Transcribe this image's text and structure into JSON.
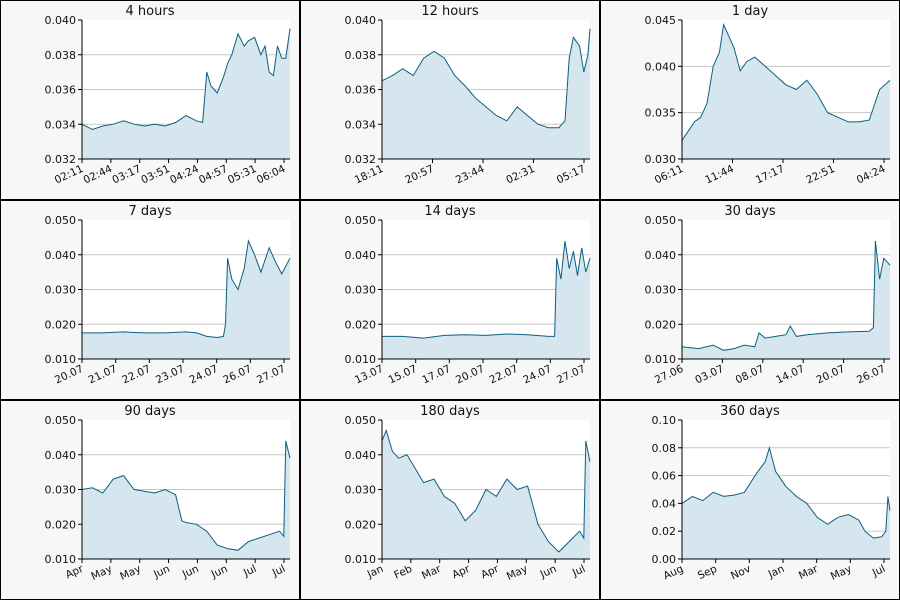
{
  "chart_data": [
    {
      "type": "area",
      "title": "4 hours",
      "ylim": [
        0.032,
        0.04
      ],
      "yticks": [
        "0.032",
        "0.034",
        "0.036",
        "0.038",
        "0.040"
      ],
      "xticks": [
        "02:11",
        "02:44",
        "03:17",
        "03:51",
        "04:24",
        "04:57",
        "05:31",
        "06:04"
      ],
      "series": [
        {
          "x": [
            0,
            0.05,
            0.1,
            0.15,
            0.2,
            0.25,
            0.3,
            0.35,
            0.4,
            0.45,
            0.5,
            0.55,
            0.58,
            0.6,
            0.62,
            0.65,
            0.68,
            0.7,
            0.72,
            0.75,
            0.78,
            0.8,
            0.83,
            0.86,
            0.88,
            0.9,
            0.92,
            0.94,
            0.96,
            0.98,
            1.0
          ],
          "y": [
            0.034,
            0.0337,
            0.0339,
            0.034,
            0.0342,
            0.034,
            0.0339,
            0.034,
            0.0339,
            0.0341,
            0.0345,
            0.0342,
            0.0341,
            0.037,
            0.0362,
            0.0358,
            0.0367,
            0.0375,
            0.038,
            0.0392,
            0.0385,
            0.0388,
            0.039,
            0.038,
            0.0385,
            0.037,
            0.0368,
            0.0385,
            0.0378,
            0.0378,
            0.0395
          ]
        }
      ]
    },
    {
      "type": "area",
      "title": "12 hours",
      "ylim": [
        0.032,
        0.04
      ],
      "yticks": [
        "0.032",
        "0.034",
        "0.036",
        "0.038",
        "0.040"
      ],
      "xticks": [
        "18:11",
        "20:57",
        "23:44",
        "02:31",
        "05:17"
      ],
      "series": [
        {
          "x": [
            0,
            0.05,
            0.1,
            0.15,
            0.2,
            0.25,
            0.3,
            0.35,
            0.4,
            0.45,
            0.5,
            0.55,
            0.6,
            0.65,
            0.7,
            0.75,
            0.8,
            0.85,
            0.88,
            0.9,
            0.92,
            0.95,
            0.97,
            0.99,
            1.0
          ],
          "y": [
            0.0365,
            0.0368,
            0.0372,
            0.0368,
            0.0378,
            0.0382,
            0.0378,
            0.0368,
            0.0362,
            0.0355,
            0.035,
            0.0345,
            0.0342,
            0.035,
            0.0345,
            0.034,
            0.0338,
            0.0338,
            0.0342,
            0.0378,
            0.039,
            0.0385,
            0.037,
            0.038,
            0.0395
          ]
        }
      ]
    },
    {
      "type": "area",
      "title": "1 day",
      "ylim": [
        0.03,
        0.045
      ],
      "yticks": [
        "0.030",
        "0.035",
        "0.040",
        "0.045"
      ],
      "xticks": [
        "06:11",
        "11:44",
        "17:17",
        "22:51",
        "04:24"
      ],
      "series": [
        {
          "x": [
            0,
            0.03,
            0.06,
            0.09,
            0.12,
            0.15,
            0.18,
            0.2,
            0.22,
            0.25,
            0.28,
            0.31,
            0.35,
            0.4,
            0.45,
            0.5,
            0.55,
            0.6,
            0.65,
            0.7,
            0.75,
            0.8,
            0.85,
            0.9,
            0.95,
            1.0
          ],
          "y": [
            0.032,
            0.033,
            0.034,
            0.0345,
            0.036,
            0.04,
            0.0415,
            0.0445,
            0.0435,
            0.042,
            0.0395,
            0.0405,
            0.041,
            0.04,
            0.039,
            0.038,
            0.0375,
            0.0385,
            0.037,
            0.035,
            0.0345,
            0.034,
            0.034,
            0.0342,
            0.0375,
            0.0385
          ]
        }
      ]
    },
    {
      "type": "area",
      "title": "7 days",
      "ylim": [
        0.01,
        0.05
      ],
      "yticks": [
        "0.010",
        "0.020",
        "0.030",
        "0.040",
        "0.050"
      ],
      "xticks": [
        "20.07",
        "21.07",
        "22.07",
        "23.07",
        "24.07",
        "26.07",
        "27.07"
      ],
      "series": [
        {
          "x": [
            0,
            0.1,
            0.2,
            0.3,
            0.4,
            0.5,
            0.55,
            0.6,
            0.65,
            0.68,
            0.69,
            0.7,
            0.72,
            0.75,
            0.78,
            0.8,
            0.83,
            0.86,
            0.9,
            0.93,
            0.96,
            1.0
          ],
          "y": [
            0.0175,
            0.0175,
            0.0178,
            0.0175,
            0.0175,
            0.0178,
            0.0175,
            0.0165,
            0.0162,
            0.0165,
            0.02,
            0.039,
            0.033,
            0.03,
            0.036,
            0.044,
            0.04,
            0.035,
            0.042,
            0.038,
            0.0345,
            0.039
          ]
        }
      ]
    },
    {
      "type": "area",
      "title": "14 days",
      "ylim": [
        0.01,
        0.05
      ],
      "yticks": [
        "0.010",
        "0.020",
        "0.030",
        "0.040",
        "0.050"
      ],
      "xticks": [
        "13.07",
        "15.07",
        "17.07",
        "20.07",
        "22.07",
        "24.07",
        "27.07"
      ],
      "series": [
        {
          "x": [
            0,
            0.1,
            0.2,
            0.3,
            0.4,
            0.5,
            0.6,
            0.7,
            0.8,
            0.83,
            0.84,
            0.86,
            0.88,
            0.9,
            0.92,
            0.94,
            0.96,
            0.98,
            1.0
          ],
          "y": [
            0.0165,
            0.0165,
            0.016,
            0.0168,
            0.017,
            0.0168,
            0.0172,
            0.017,
            0.0165,
            0.0165,
            0.039,
            0.033,
            0.044,
            0.036,
            0.041,
            0.034,
            0.042,
            0.035,
            0.039
          ]
        }
      ]
    },
    {
      "type": "area",
      "title": "30 days",
      "ylim": [
        0.01,
        0.05
      ],
      "yticks": [
        "0.010",
        "0.020",
        "0.030",
        "0.040",
        "0.050"
      ],
      "xticks": [
        "27.06",
        "03.07",
        "08.07",
        "14.07",
        "20.07",
        "26.07"
      ],
      "series": [
        {
          "x": [
            0,
            0.08,
            0.15,
            0.2,
            0.25,
            0.3,
            0.35,
            0.37,
            0.4,
            0.45,
            0.5,
            0.52,
            0.55,
            0.6,
            0.7,
            0.8,
            0.9,
            0.92,
            0.93,
            0.95,
            0.97,
            1.0
          ],
          "y": [
            0.0135,
            0.013,
            0.014,
            0.0125,
            0.013,
            0.014,
            0.0135,
            0.0175,
            0.016,
            0.0165,
            0.017,
            0.0195,
            0.0165,
            0.017,
            0.0175,
            0.0178,
            0.018,
            0.019,
            0.044,
            0.033,
            0.039,
            0.037
          ]
        }
      ]
    },
    {
      "type": "area",
      "title": "90 days",
      "ylim": [
        0.01,
        0.05
      ],
      "yticks": [
        "0.010",
        "0.020",
        "0.030",
        "0.040",
        "0.050"
      ],
      "xticks": [
        "Apr",
        "May",
        "May",
        "Jun",
        "Jun",
        "Jun",
        "Jul",
        "Jul"
      ],
      "series": [
        {
          "x": [
            0,
            0.05,
            0.1,
            0.15,
            0.2,
            0.25,
            0.3,
            0.35,
            0.4,
            0.45,
            0.48,
            0.5,
            0.55,
            0.6,
            0.65,
            0.7,
            0.75,
            0.8,
            0.85,
            0.9,
            0.95,
            0.97,
            0.98,
            1.0
          ],
          "y": [
            0.03,
            0.0305,
            0.029,
            0.033,
            0.034,
            0.03,
            0.0295,
            0.029,
            0.03,
            0.0285,
            0.021,
            0.0205,
            0.02,
            0.018,
            0.014,
            0.013,
            0.0125,
            0.015,
            0.016,
            0.017,
            0.018,
            0.0165,
            0.044,
            0.039
          ]
        }
      ]
    },
    {
      "type": "area",
      "title": "180 days",
      "ylim": [
        0.01,
        0.05
      ],
      "yticks": [
        "0.010",
        "0.020",
        "0.030",
        "0.040",
        "0.050"
      ],
      "xticks": [
        "Jan",
        "Feb",
        "Mar",
        "Apr",
        "Apr",
        "May",
        "Jun",
        "Jul"
      ],
      "series": [
        {
          "x": [
            0,
            0.02,
            0.05,
            0.08,
            0.12,
            0.16,
            0.2,
            0.25,
            0.3,
            0.35,
            0.4,
            0.45,
            0.5,
            0.55,
            0.6,
            0.65,
            0.7,
            0.75,
            0.8,
            0.85,
            0.9,
            0.95,
            0.97,
            0.98,
            1.0
          ],
          "y": [
            0.044,
            0.047,
            0.041,
            0.039,
            0.04,
            0.036,
            0.032,
            0.033,
            0.028,
            0.026,
            0.021,
            0.024,
            0.03,
            0.028,
            0.033,
            0.03,
            0.031,
            0.02,
            0.015,
            0.012,
            0.015,
            0.018,
            0.016,
            0.044,
            0.038
          ]
        }
      ]
    },
    {
      "type": "area",
      "title": "360 days",
      "ylim": [
        0.0,
        0.1
      ],
      "yticks": [
        "0.00",
        "0.02",
        "0.04",
        "0.06",
        "0.08",
        "0.10"
      ],
      "xticks": [
        "Aug",
        "Sep",
        "Nov",
        "Jan",
        "Mar",
        "May",
        "Jul"
      ],
      "series": [
        {
          "x": [
            0,
            0.05,
            0.1,
            0.15,
            0.2,
            0.25,
            0.3,
            0.33,
            0.36,
            0.4,
            0.42,
            0.45,
            0.5,
            0.55,
            0.6,
            0.65,
            0.7,
            0.75,
            0.8,
            0.85,
            0.88,
            0.92,
            0.96,
            0.98,
            0.99,
            1.0
          ],
          "y": [
            0.04,
            0.045,
            0.042,
            0.048,
            0.045,
            0.046,
            0.048,
            0.055,
            0.062,
            0.07,
            0.08,
            0.063,
            0.052,
            0.045,
            0.04,
            0.03,
            0.025,
            0.03,
            0.032,
            0.028,
            0.02,
            0.015,
            0.016,
            0.02,
            0.045,
            0.035
          ]
        }
      ]
    }
  ]
}
